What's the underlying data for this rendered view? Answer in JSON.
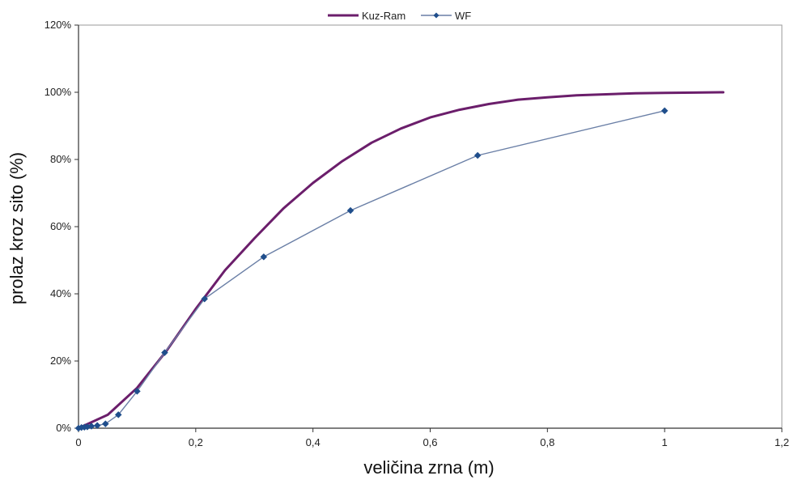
{
  "chart_data": {
    "type": "line",
    "xlabel": "veličina zrna (m)",
    "ylabel": "prolaz kroz sito (%)",
    "xlim": [
      0,
      1.2
    ],
    "ylim": [
      0,
      1.2
    ],
    "x_ticks": [
      0,
      0.2,
      0.4,
      0.6,
      0.8,
      1,
      1.2
    ],
    "x_tick_labels": [
      "0",
      "0,2",
      "0,4",
      "0,6",
      "0,8",
      "1",
      "1,2"
    ],
    "y_ticks": [
      0,
      0.2,
      0.4,
      0.6,
      0.8,
      1,
      1.2
    ],
    "y_tick_labels": [
      "0%",
      "20%",
      "40%",
      "60%",
      "80%",
      "100%",
      "120%"
    ],
    "grid": false,
    "legend_position": "top-center",
    "series": [
      {
        "name": "Kuz-Ram",
        "color": "#6b1e6b",
        "marker": "none",
        "x": [
          0,
          0.05,
          0.1,
          0.15,
          0.2,
          0.25,
          0.3,
          0.35,
          0.4,
          0.45,
          0.5,
          0.55,
          0.6,
          0.65,
          0.7,
          0.75,
          0.8,
          0.85,
          0.9,
          0.95,
          1.0,
          1.05,
          1.1
        ],
        "y": [
          0,
          0.04,
          0.12,
          0.23,
          0.355,
          0.47,
          0.565,
          0.655,
          0.73,
          0.795,
          0.85,
          0.892,
          0.925,
          0.948,
          0.965,
          0.978,
          0.985,
          0.991,
          0.994,
          0.997,
          0.998,
          0.999,
          1.0
        ]
      },
      {
        "name": "WF",
        "color": "#6a7fa6",
        "marker_color": "#1f4e8c",
        "marker": "diamond",
        "x": [
          0,
          0.005,
          0.01,
          0.015,
          0.022,
          0.032,
          0.046,
          0.068,
          0.1,
          0.147,
          0.215,
          0.316,
          0.464,
          0.681,
          1.0
        ],
        "y": [
          0,
          0.002,
          0.003,
          0.004,
          0.006,
          0.008,
          0.013,
          0.04,
          0.11,
          0.225,
          0.385,
          0.51,
          0.648,
          0.812,
          0.945
        ]
      }
    ]
  }
}
